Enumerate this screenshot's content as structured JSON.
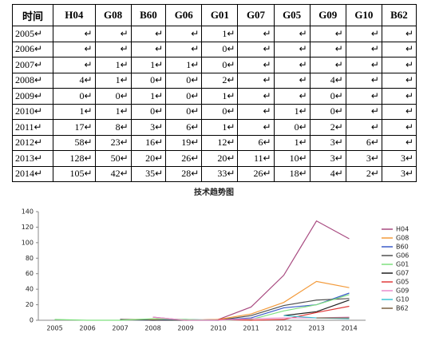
{
  "table": {
    "header": [
      "时间",
      "H04",
      "G08",
      "B60",
      "G06",
      "G01",
      "G07",
      "G05",
      "G09",
      "G10",
      "B62"
    ],
    "rows": [
      [
        "2005↵",
        "↵",
        "↵",
        "↵",
        "↵",
        "1↵",
        "↵",
        "↵",
        "↵",
        "↵",
        "↵"
      ],
      [
        "2006↵",
        "↵",
        "↵",
        "↵",
        "↵",
        "0↵",
        "↵",
        "↵",
        "↵",
        "↵",
        "↵"
      ],
      [
        "2007↵",
        "↵",
        "1↵",
        "1↵",
        "1↵",
        "0↵",
        "↵",
        "↵",
        "↵",
        "↵",
        "↵"
      ],
      [
        "2008↵",
        "4↵",
        "1↵",
        "0↵",
        "0↵",
        "2↵",
        "↵",
        "↵",
        "4↵",
        "↵",
        "↵"
      ],
      [
        "2009↵",
        "0↵",
        "0↵",
        "1↵",
        "0↵",
        "1↵",
        "↵",
        "↵",
        "0↵",
        "↵",
        "↵"
      ],
      [
        "2010↵",
        "1↵",
        "1↵",
        "0↵",
        "0↵",
        "0↵",
        "↵",
        "1↵",
        "0↵",
        "↵",
        "↵"
      ],
      [
        "2011↵",
        "17↵",
        "8↵",
        "3↵",
        "6↵",
        "1↵",
        "↵",
        "0↵",
        "2↵",
        "↵",
        "↵"
      ],
      [
        "2012↵",
        "58↵",
        "23↵",
        "16↵",
        "19↵",
        "12↵",
        "6↵",
        "1↵",
        "3↵",
        "6↵",
        "↵"
      ],
      [
        "2013↵",
        "128↵",
        "50↵",
        "20↵",
        "26↵",
        "20↵",
        "11↵",
        "10↵",
        "3↵",
        "3↵",
        "3↵"
      ],
      [
        "2014↵",
        "105↵",
        "42↵",
        "35↵",
        "28↵",
        "33↵",
        "26↵",
        "18↵",
        "4↵",
        "2↵",
        "3↵"
      ]
    ]
  },
  "chart_data": {
    "type": "line",
    "title": "技术趋势图",
    "categories": [
      "2005",
      "2006",
      "2007",
      "2008",
      "2009",
      "2010",
      "2011",
      "2012",
      "2013",
      "2014"
    ],
    "ylim": [
      0,
      140
    ],
    "yticks": [
      0,
      20,
      40,
      60,
      80,
      100,
      120,
      140
    ],
    "series": [
      {
        "name": "H04",
        "color": "#a84a80",
        "values": [
          null,
          null,
          null,
          4,
          0,
          1,
          17,
          58,
          128,
          105
        ]
      },
      {
        "name": "G08",
        "color": "#f39a3a",
        "values": [
          null,
          null,
          1,
          1,
          0,
          1,
          8,
          23,
          50,
          42
        ]
      },
      {
        "name": "B60",
        "color": "#3a5bc8",
        "values": [
          null,
          null,
          1,
          0,
          1,
          0,
          3,
          16,
          20,
          35
        ]
      },
      {
        "name": "G06",
        "color": "#505050",
        "values": [
          null,
          null,
          1,
          0,
          0,
          0,
          6,
          19,
          26,
          28
        ]
      },
      {
        "name": "G01",
        "color": "#7fe07f",
        "values": [
          1,
          0,
          0,
          2,
          1,
          0,
          1,
          12,
          20,
          33
        ]
      },
      {
        "name": "G07",
        "color": "#202020",
        "values": [
          null,
          null,
          null,
          null,
          null,
          null,
          null,
          6,
          11,
          26
        ]
      },
      {
        "name": "G05",
        "color": "#e03a3a",
        "values": [
          null,
          null,
          null,
          null,
          null,
          1,
          0,
          1,
          10,
          18
        ]
      },
      {
        "name": "G09",
        "color": "#e88ccc",
        "values": [
          null,
          null,
          null,
          4,
          0,
          0,
          2,
          3,
          3,
          4
        ]
      },
      {
        "name": "G10",
        "color": "#3cc4d4",
        "values": [
          null,
          null,
          null,
          null,
          null,
          null,
          null,
          6,
          3,
          2
        ]
      },
      {
        "name": "B62",
        "color": "#7a6040",
        "values": [
          null,
          null,
          null,
          null,
          null,
          null,
          null,
          null,
          3,
          3
        ]
      }
    ]
  }
}
